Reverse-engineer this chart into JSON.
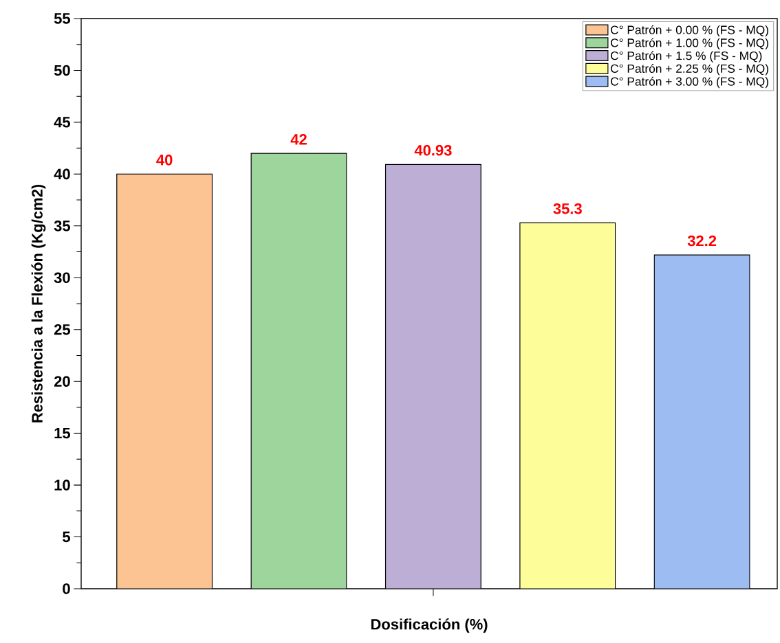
{
  "chart_data": {
    "type": "bar",
    "xlabel": "Dosificación (%)",
    "ylabel": "Resistencia a la Flexión (Kg/cm2)",
    "categories": [
      null,
      null,
      null,
      null,
      null
    ],
    "series": [
      {
        "name": "C° Patrón + 0.00 % (FS - MQ)",
        "color": "#fcc493",
        "values": [
          40,
          null,
          null,
          null,
          null
        ]
      },
      {
        "name": "C° Patrón + 1.00 % (FS - MQ)",
        "color": "#9ed59c",
        "values": [
          null,
          42,
          null,
          null,
          null
        ]
      },
      {
        "name": "C° Patrón + 1.5 % (FS - MQ)",
        "color": "#bcaed5",
        "values": [
          null,
          null,
          40.93,
          null,
          null
        ]
      },
      {
        "name": "C° Patrón + 2.25 % (FS - MQ)",
        "color": "#fdfd9a",
        "values": [
          null,
          null,
          null,
          35.3,
          null
        ]
      },
      {
        "name": "C° Patrón + 3.00 % (FS - MQ)",
        "color": "#9dbcf2",
        "values": [
          null,
          null,
          null,
          null,
          32.2
        ]
      }
    ],
    "ylim": [
      0,
      55
    ],
    "yticks": [
      0,
      5,
      10,
      15,
      20,
      25,
      30,
      35,
      40,
      45,
      50,
      55
    ],
    "stacked": true,
    "data_labels": true,
    "legend": "top right"
  }
}
